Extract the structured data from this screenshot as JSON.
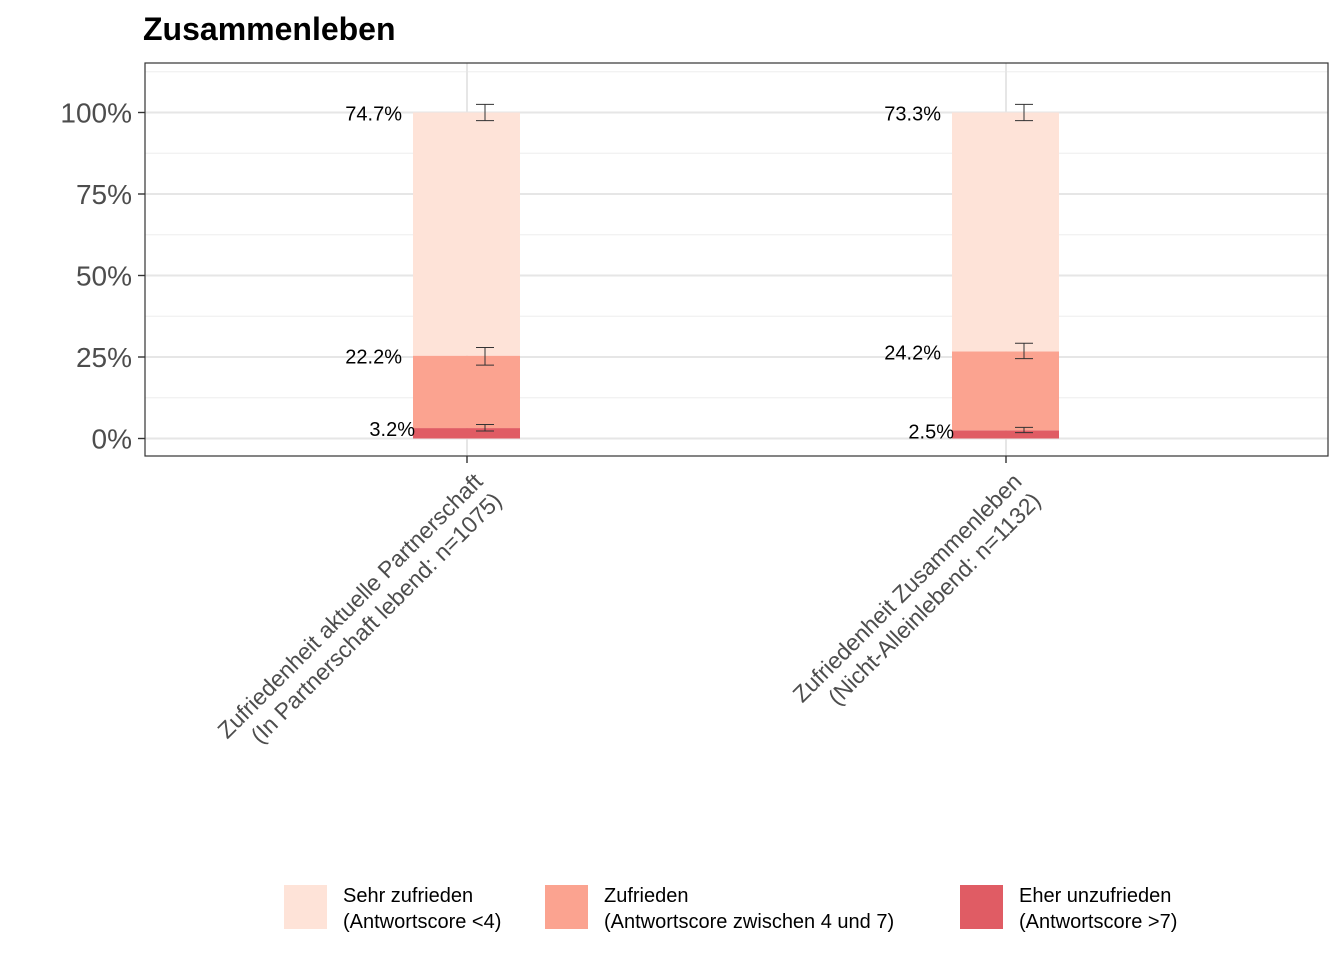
{
  "chart_data": {
    "type": "bar",
    "title": "Zusammenleben",
    "xlabel": "",
    "ylabel": "",
    "ylim": [
      -0.05,
      1.15
    ],
    "yticks": [
      {
        "value": 0,
        "label": "0%"
      },
      {
        "value": 0.25,
        "label": "25%"
      },
      {
        "value": 0.5,
        "label": "50%"
      },
      {
        "value": 0.75,
        "label": "75%"
      },
      {
        "value": 1.0,
        "label": "100%"
      }
    ],
    "categories": [
      {
        "line1": "Zufriedenheit aktuelle Partnerschaft",
        "line2": "(In Partnerschaft lebend: n=1075)"
      },
      {
        "line1": "Zufriedenheit Zusammenleben",
        "line2": "(Nicht-Alleinlebend: n=1132)"
      }
    ],
    "series": [
      {
        "name": "Eher unzufrieden",
        "name2": "(Antwortscore >7)",
        "color": "#e05c64",
        "values": [
          0.032,
          0.025
        ],
        "labels": [
          "3.2%",
          "2.5%"
        ],
        "err_lo": [
          0.023,
          0.018
        ],
        "err_hi": [
          0.043,
          0.034
        ]
      },
      {
        "name": "Zufrieden",
        "name2": "(Antwortscore zwischen 4 und 7)",
        "color": "#fba390",
        "values": [
          0.222,
          0.242
        ],
        "labels": [
          "22.2%",
          "24.2%"
        ],
        "err_lo": [
          0.225,
          0.245
        ],
        "err_hi": [
          0.279,
          0.292
        ]
      },
      {
        "name": "Sehr zufrieden",
        "name2": "(Antwortscore <4)",
        "color": "#fee3d8",
        "values": [
          0.747,
          0.733
        ],
        "labels": [
          "74.7%",
          "73.3%"
        ],
        "err_lo": [
          0.975,
          0.975
        ],
        "err_hi": [
          1.025,
          1.025
        ]
      }
    ],
    "legend_order": [
      2,
      1,
      0
    ],
    "legend_position": "bottom",
    "grid": true
  }
}
